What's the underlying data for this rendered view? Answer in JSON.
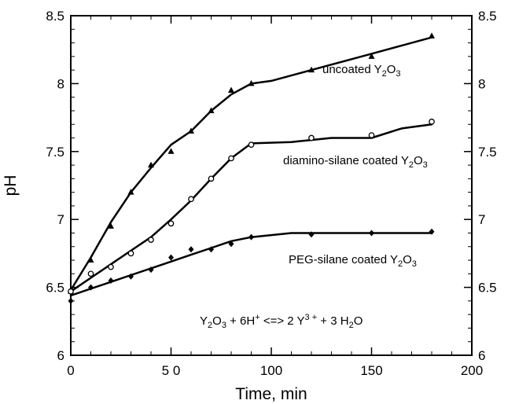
{
  "chart_data": {
    "type": "line",
    "title": "",
    "xlabel": "Time, min",
    "ylabel": "pH",
    "xlim": [
      0,
      200
    ],
    "ylim": [
      6,
      8.5
    ],
    "x_ticks": [
      0,
      50,
      100,
      150,
      200
    ],
    "x_tick_labels": [
      "0",
      "5 0",
      "100",
      "150",
      "200"
    ],
    "y_ticks": [
      6,
      6.5,
      7,
      7.5,
      8,
      8.5
    ],
    "y_tick_labels": [
      "6",
      "6.5",
      "7",
      "7.5",
      "8",
      "8.5"
    ],
    "y2_tick_labels": [
      "6",
      "6.5",
      "7",
      "7.5",
      "8",
      "8.5"
    ],
    "grid": false,
    "series": [
      {
        "name": "uncoated Y2O3",
        "label_parts": [
          "uncoated Y",
          "2",
          "O",
          "3"
        ],
        "marker": "filled-triangle",
        "points": {
          "x": [
            0,
            10,
            20,
            30,
            40,
            50,
            60,
            70,
            80,
            90,
            120,
            150,
            180
          ],
          "y": [
            6.47,
            6.7,
            6.95,
            7.2,
            7.4,
            7.5,
            7.65,
            7.8,
            7.95,
            8.0,
            8.1,
            8.2,
            8.35
          ]
        },
        "curve": {
          "x": [
            0,
            10,
            20,
            30,
            40,
            50,
            60,
            70,
            80,
            90,
            100,
            120,
            150,
            180
          ],
          "y": [
            6.48,
            6.72,
            6.98,
            7.2,
            7.38,
            7.55,
            7.65,
            7.8,
            7.92,
            8.0,
            8.02,
            8.1,
            8.22,
            8.34
          ]
        }
      },
      {
        "name": "diamino-silane coated Y2O3",
        "label_parts": [
          "diamino-silane coated Y",
          "2",
          "O",
          "3"
        ],
        "marker": "open-circle",
        "points": {
          "x": [
            0,
            10,
            20,
            30,
            40,
            50,
            60,
            70,
            80,
            90,
            120,
            150,
            180
          ],
          "y": [
            6.47,
            6.6,
            6.65,
            6.75,
            6.85,
            6.97,
            7.15,
            7.3,
            7.45,
            7.55,
            7.6,
            7.62,
            7.72
          ]
        },
        "curve": {
          "x": [
            0,
            10,
            20,
            30,
            40,
            50,
            60,
            70,
            80,
            90,
            110,
            130,
            150,
            165,
            180
          ],
          "y": [
            6.47,
            6.57,
            6.67,
            6.77,
            6.87,
            7.0,
            7.14,
            7.3,
            7.45,
            7.56,
            7.57,
            7.6,
            7.6,
            7.67,
            7.7
          ]
        }
      },
      {
        "name": "PEG-silane coated Y2O3",
        "label_parts": [
          "PEG-silane coated Y",
          "2",
          "O",
          "3"
        ],
        "marker": "filled-diamond",
        "points": {
          "x": [
            0,
            10,
            20,
            30,
            40,
            50,
            60,
            70,
            80,
            90,
            120,
            150,
            180
          ],
          "y": [
            6.4,
            6.5,
            6.55,
            6.58,
            6.63,
            6.72,
            6.78,
            6.78,
            6.82,
            6.87,
            6.89,
            6.9,
            6.91
          ]
        },
        "curve": {
          "x": [
            0,
            10,
            20,
            30,
            40,
            50,
            60,
            70,
            80,
            90,
            110,
            130,
            150,
            180
          ],
          "y": [
            6.44,
            6.49,
            6.54,
            6.59,
            6.64,
            6.69,
            6.74,
            6.79,
            6.84,
            6.87,
            6.9,
            6.9,
            6.9,
            6.9
          ]
        }
      }
    ],
    "equation_parts": [
      "Y",
      "2",
      "O",
      "3",
      " + 6H",
      "+",
      " <=> 2 Y",
      "3 +",
      " + 3 H",
      "2",
      "O"
    ]
  }
}
